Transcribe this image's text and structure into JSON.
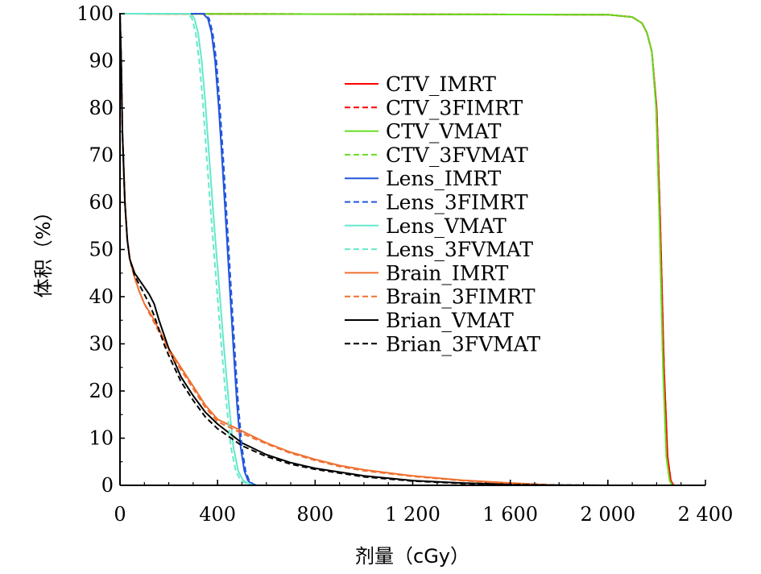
{
  "chart_data": {
    "type": "line",
    "xlabel": "剂量（cGy）",
    "ylabel": "体积（%）",
    "xlim": [
      0,
      2400
    ],
    "ylim": [
      0,
      100
    ],
    "x_ticks": [
      0,
      400,
      800,
      1200,
      1600,
      2000,
      2400
    ],
    "x_tick_labels": [
      "0",
      "400",
      "800",
      "1 200",
      "1 600",
      "2 000",
      "2 400"
    ],
    "y_ticks": [
      0,
      10,
      20,
      30,
      40,
      50,
      60,
      70,
      80,
      90,
      100
    ],
    "y_tick_labels": [
      "0",
      "10",
      "20",
      "30",
      "40",
      "50",
      "60",
      "70",
      "80",
      "90",
      "100"
    ],
    "grid": false,
    "legend_position": "top-center",
    "series": [
      {
        "name": "CTV_IMRT",
        "color": "#ff0000",
        "dashed": false,
        "x": [
          0,
          2000,
          2100,
          2140,
          2160,
          2180,
          2200,
          2215,
          2230,
          2245,
          2258,
          2268
        ],
        "y": [
          100,
          99.8,
          99.3,
          98,
          96,
          92,
          80,
          55,
          25,
          6,
          1,
          0
        ]
      },
      {
        "name": "CTV_3FIMRT",
        "color": "#ff0000",
        "dashed": true,
        "x": [
          0,
          2000,
          2100,
          2140,
          2160,
          2180,
          2200,
          2215,
          2230,
          2245,
          2258,
          2270
        ],
        "y": [
          100,
          99.8,
          99.3,
          98,
          96,
          92,
          80,
          55,
          25,
          6,
          1,
          0
        ]
      },
      {
        "name": "CTV_VMAT",
        "color": "#66dd22",
        "dashed": false,
        "x": [
          0,
          2000,
          2100,
          2140,
          2160,
          2180,
          2198,
          2212,
          2226,
          2240,
          2253,
          2262
        ],
        "y": [
          100,
          99.8,
          99.3,
          98,
          96,
          92,
          80,
          55,
          25,
          6,
          1,
          0
        ]
      },
      {
        "name": "CTV_3FVMAT",
        "color": "#66dd22",
        "dashed": true,
        "x": [
          0,
          2000,
          2100,
          2140,
          2160,
          2180,
          2198,
          2212,
          2226,
          2240,
          2253,
          2264
        ],
        "y": [
          100,
          99.8,
          99.3,
          98,
          96,
          92,
          80,
          55,
          25,
          6,
          1,
          0
        ]
      },
      {
        "name": "Lens_IMRT",
        "color": "#2255dd",
        "dashed": false,
        "x": [
          0,
          340,
          360,
          375,
          390,
          405,
          420,
          435,
          450,
          465,
          480,
          495,
          510,
          525,
          540,
          555
        ],
        "y": [
          100,
          100,
          99,
          96,
          90,
          80,
          68,
          55,
          42,
          29,
          17,
          8,
          3,
          1,
          0.3,
          0
        ]
      },
      {
        "name": "Lens_3FIMRT",
        "color": "#2255dd",
        "dashed": true,
        "x": [
          0,
          345,
          365,
          380,
          395,
          410,
          425,
          440,
          455,
          470,
          485,
          500,
          515,
          530,
          545,
          560
        ],
        "y": [
          100,
          100,
          99,
          96,
          90,
          80,
          68,
          55,
          42,
          29,
          17,
          8,
          3,
          1,
          0.3,
          0
        ]
      },
      {
        "name": "Lens_VMAT",
        "color": "#66e8cc",
        "dashed": false,
        "x": [
          0,
          290,
          305,
          320,
          335,
          350,
          365,
          385,
          405,
          425,
          445,
          465,
          485,
          505,
          530,
          560
        ],
        "y": [
          100,
          100,
          99,
          96,
          90,
          81,
          70,
          56,
          43,
          30,
          18,
          8,
          3,
          1,
          0.3,
          0
        ]
      },
      {
        "name": "Lens_3FVMAT",
        "color": "#66e8cc",
        "dashed": true,
        "x": [
          0,
          280,
          295,
          310,
          325,
          340,
          355,
          375,
          395,
          415,
          435,
          455,
          475,
          495,
          520,
          550
        ],
        "y": [
          100,
          100,
          99,
          96,
          90,
          81,
          70,
          56,
          43,
          30,
          18,
          8,
          3,
          1,
          0.3,
          0
        ]
      },
      {
        "name": "Brain_IMRT",
        "color": "#f07030",
        "dashed": false,
        "x": [
          0,
          5,
          10,
          20,
          30,
          40,
          60,
          80,
          100,
          130,
          160,
          200,
          250,
          300,
          350,
          400,
          500,
          600,
          700,
          800,
          900,
          1000,
          1200,
          1400,
          1600,
          1800
        ],
        "y": [
          100,
          90,
          75,
          60,
          52,
          48,
          44,
          41,
          38.5,
          36,
          33,
          29,
          25,
          21,
          17,
          14,
          11.5,
          9,
          7,
          5.5,
          4.2,
          3.3,
          2,
          1.1,
          0.5,
          0
        ]
      },
      {
        "name": "Brain_3FIMRT",
        "color": "#f07030",
        "dashed": true,
        "x": [
          0,
          5,
          10,
          20,
          30,
          40,
          60,
          80,
          100,
          130,
          160,
          200,
          250,
          300,
          350,
          400,
          500,
          600,
          700,
          800,
          900,
          1000,
          1200,
          1400,
          1600,
          1800
        ],
        "y": [
          100,
          90,
          75,
          60,
          52,
          48,
          44,
          41,
          38.5,
          35.5,
          32.5,
          28.5,
          24.5,
          20.5,
          16.5,
          13.5,
          11,
          8.8,
          6.8,
          5.3,
          4,
          3.1,
          1.9,
          1,
          0.4,
          0
        ]
      },
      {
        "name": "Brian_VMAT",
        "color": "#000000",
        "dashed": false,
        "x": [
          0,
          5,
          10,
          20,
          30,
          40,
          60,
          80,
          100,
          120,
          140,
          160,
          180,
          200,
          250,
          300,
          350,
          400,
          500,
          600,
          700,
          800,
          1000,
          1200,
          1400,
          1600,
          1800,
          2000
        ],
        "y": [
          100,
          90,
          75,
          60,
          52,
          48,
          45,
          43.5,
          42,
          40.5,
          38.5,
          35,
          32,
          29,
          23,
          19,
          15.5,
          13,
          9,
          6.5,
          4.8,
          3.6,
          2,
          1,
          0.5,
          0.2,
          0.05,
          0
        ]
      },
      {
        "name": "Brian_3FVMAT",
        "color": "#000000",
        "dashed": true,
        "x": [
          0,
          5,
          10,
          20,
          30,
          40,
          60,
          80,
          100,
          120,
          140,
          160,
          180,
          200,
          250,
          300,
          350,
          400,
          500,
          600,
          700,
          800,
          1000,
          1200,
          1400,
          1600,
          1800,
          2000
        ],
        "y": [
          100,
          90,
          75,
          60,
          52,
          48,
          44.5,
          42.5,
          40.5,
          38.5,
          36,
          33,
          30,
          27.5,
          22,
          18,
          14.5,
          12,
          8.4,
          6.1,
          4.5,
          3.4,
          1.8,
          0.9,
          0.4,
          0.15,
          0.05,
          0
        ]
      }
    ]
  }
}
